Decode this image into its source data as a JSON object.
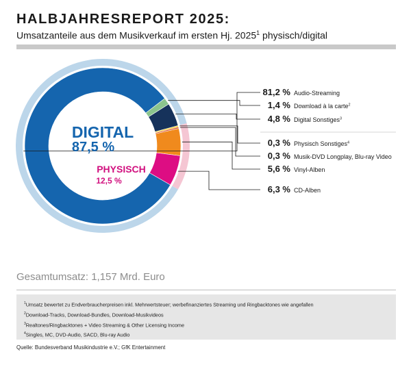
{
  "header": {
    "title": "HALBJAHRESREPORT 2025:",
    "subtitle_text": "Umsatzanteile aus dem Musikverkauf im ersten Hj. 2025",
    "subtitle_sup": "1",
    "subtitle_suffix": " physisch/digital"
  },
  "chart_data": {
    "type": "pie",
    "variant": "donut",
    "groups": [
      {
        "name": "DIGITAL",
        "label": "87,5 %",
        "value": 87.5,
        "color": "#1565ae"
      },
      {
        "name": "PHYSISCH",
        "label": "12,5 %",
        "value": 12.5,
        "color": "#d10f7e"
      }
    ],
    "slices": [
      {
        "label": "Audio-Streaming",
        "sup": "",
        "value": 81.2,
        "value_text": "81,2 %",
        "group": "digital",
        "color": "#1565ae"
      },
      {
        "label": "Download à la carte",
        "sup": "2",
        "value": 1.4,
        "value_text": "1,4 %",
        "group": "digital",
        "color": "#8bc48d"
      },
      {
        "label": "Digital Sonstiges",
        "sup": "3",
        "value": 4.8,
        "value_text": "4,8 %",
        "group": "digital",
        "color": "#16325b"
      },
      {
        "label": "Physisch Sonstiges",
        "sup": "4",
        "value": 0.3,
        "value_text": "0,3 %",
        "group": "physisch",
        "color": "#f6cf2c"
      },
      {
        "label": "Musik-DVD Longplay, Blu-ray Video",
        "sup": "",
        "value": 0.3,
        "value_text": "0,3 %",
        "group": "physisch",
        "color": "#d84a2b"
      },
      {
        "label": "Vinyl-Alben",
        "sup": "",
        "value": 5.6,
        "value_text": "5,6 %",
        "group": "physisch",
        "color": "#f08a1d"
      },
      {
        "label": "CD-Alben",
        "sup": "",
        "value": 6.3,
        "value_text": "6,3 %",
        "group": "physisch",
        "color": "#dd0d83"
      }
    ],
    "ring_colors": {
      "digital": "#bcd6ea",
      "physisch": "#f5c6d3"
    },
    "legend_placement": "right"
  },
  "summary": {
    "total": "Gesamtumsatz: 1,157 Mrd. Euro"
  },
  "footnotes": [
    {
      "sup": "1",
      "text": "Umsatz bewertet zu Endverbraucherpreisen inkl. Mehrwertsteuer; werbefinanziertes Streaming und Ringbacktones wie angefallen"
    },
    {
      "sup": "2",
      "text": "Download-Tracks, Download-Bundles, Download-Musikvideos"
    },
    {
      "sup": "3",
      "text": "Realtones/Ringbacktones + Video Streaming & Other Licensing Income"
    },
    {
      "sup": "4",
      "text": "Singles, MC, DVD-Audio, SACD, Blu-ray Audio"
    }
  ],
  "source": "Quelle: Bundesverband Musikindustrie e.V.; GfK Entertainment"
}
